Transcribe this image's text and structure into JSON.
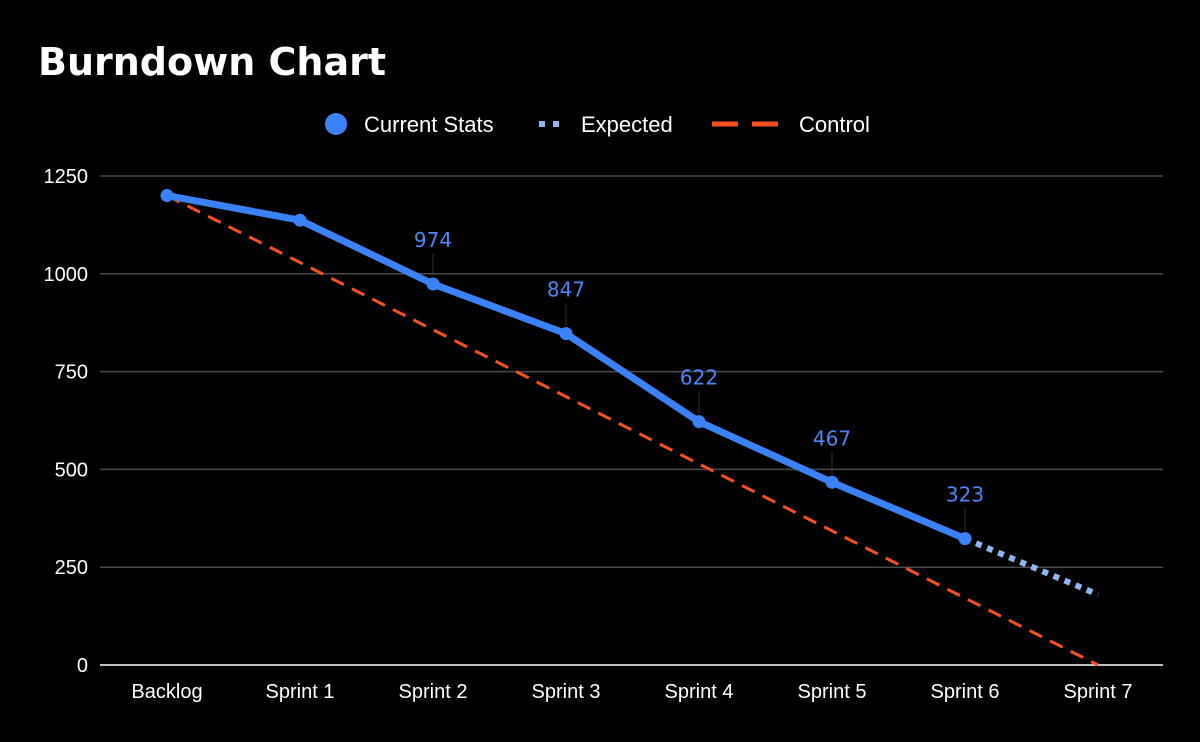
{
  "chart_data": {
    "type": "line",
    "title": "Burndown Chart",
    "xlabel": "",
    "ylabel": "",
    "categories": [
      "Backlog",
      "Sprint 1",
      "Sprint 2",
      "Sprint 3",
      "Sprint 4",
      "Sprint 5",
      "Sprint 6",
      "Sprint 7"
    ],
    "ylim": [
      0,
      1250
    ],
    "yticks": [
      "0",
      "250",
      "500",
      "750",
      "1000",
      "1250"
    ],
    "grid": true,
    "legend_position": "top",
    "series": [
      {
        "name": "Current Stats",
        "color": "#3b82f6",
        "style": "solid-markers",
        "values": [
          1200,
          1137,
          974,
          847,
          622,
          467,
          323,
          null
        ],
        "labels": [
          null,
          null,
          "974",
          "847",
          "622",
          "467",
          "323",
          null
        ]
      },
      {
        "name": "Expected",
        "color": "#8fb4f0",
        "style": "dotted",
        "values": [
          null,
          null,
          null,
          null,
          null,
          null,
          323,
          180
        ]
      },
      {
        "name": "Control",
        "color": "#f4511e",
        "style": "dashed",
        "values": [
          1200,
          1029,
          857,
          686,
          514,
          343,
          171,
          0
        ]
      }
    ]
  }
}
